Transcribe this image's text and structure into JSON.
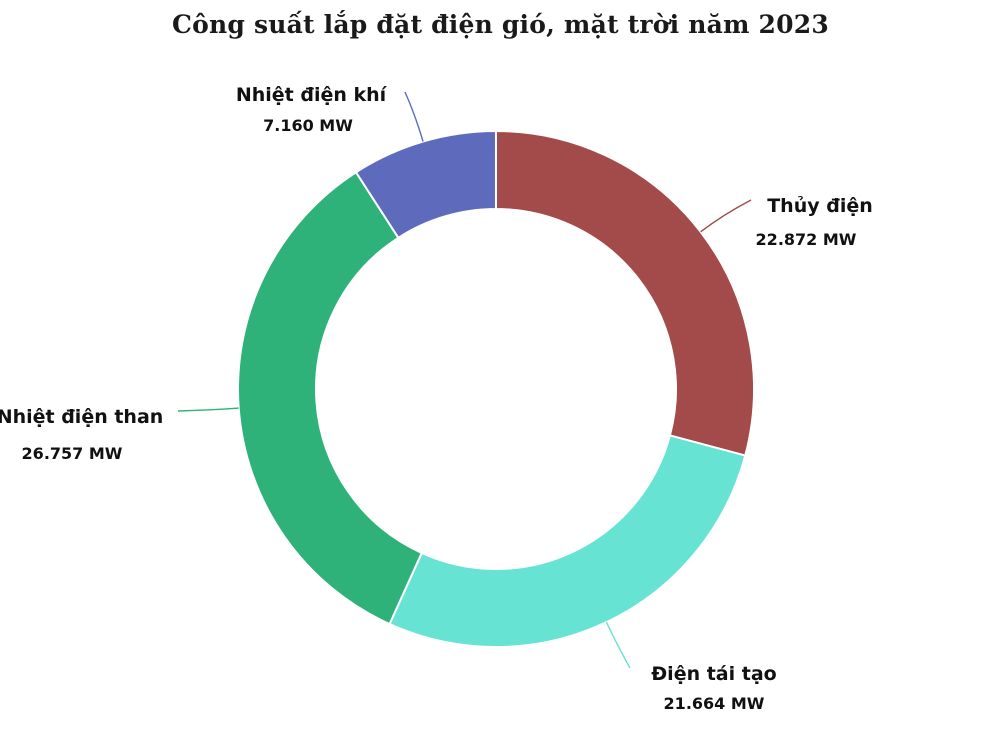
{
  "chart_data": {
    "type": "pie",
    "variant": "donut",
    "title": "Công suất lắp đặt điện gió, mặt trời năm 2023",
    "unit": "MW",
    "slices": [
      {
        "name": "Thủy điện",
        "value": 22872,
        "value_label": "22.872 MW",
        "color": "#a34a4a"
      },
      {
        "name": "Điện tái tạo",
        "value": 21664,
        "value_label": "21.664 MW",
        "color": "#67e3d3"
      },
      {
        "name": "Nhiệt điện than",
        "value": 26757,
        "value_label": "26.757 MW",
        "color": "#2fb27a"
      },
      {
        "name": "Nhiệt điện khí",
        "value": 7160,
        "value_label": "7.160 MW",
        "color": "#5e6abb"
      }
    ]
  }
}
